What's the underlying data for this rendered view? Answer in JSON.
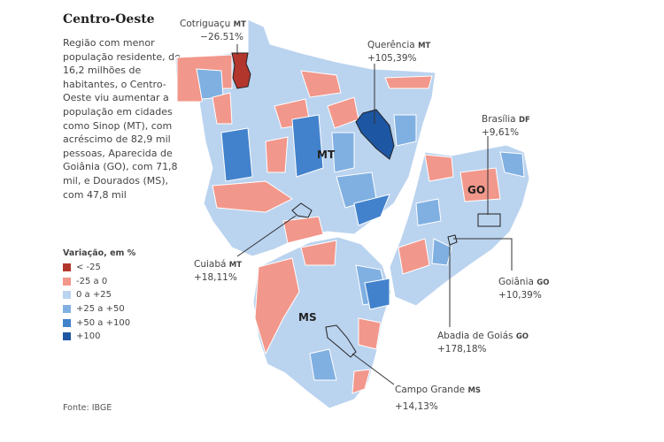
{
  "title": "Centro-Oeste",
  "description": "Região com menor população residente, de 16,2 milhões de habitantes, o Centro-Oeste viu aumentar a população em cidades como Sinop (MT), com acréscimo de 82,9 mil pessoas, Aparecida de Goiânia (GO), com 71,8 mil, e Dourados (MS), com 47,8 mil",
  "legend": {
    "title": "Variação, em %",
    "items": [
      {
        "label": "< -25",
        "color": "#b3362d"
      },
      {
        "label": "-25 a 0",
        "color": "#f2978b"
      },
      {
        "label": "0 a +25",
        "color": "#bad3ef"
      },
      {
        "label": "+25 a +50",
        "color": "#80b0e2"
      },
      {
        "label": "+50 a +100",
        "color": "#4282cc"
      },
      {
        "label": "+100",
        "color": "#1d56a3"
      }
    ]
  },
  "states": {
    "mt": "MT",
    "ms": "MS",
    "go": "GO"
  },
  "annotations": [
    {
      "city": "Cotriguaçu",
      "state": "MT",
      "value": "−26.51%"
    },
    {
      "city": "Querência",
      "state": "MT",
      "value": "+105,39%"
    },
    {
      "city": "Brasília",
      "state": "DF",
      "value": "+9,61%"
    },
    {
      "city": "Cuiabá",
      "state": "MT",
      "value": "+18,11%"
    },
    {
      "city": "Goiânia",
      "state": "GO",
      "value": "+10,39%"
    },
    {
      "city": "Abadia de Goiás",
      "state": "GO",
      "value": "+178,18%"
    },
    {
      "city": "Campo Grande",
      "state": "MS",
      "value": "+14,13%"
    }
  ],
  "source": "Fonte: IBGE"
}
